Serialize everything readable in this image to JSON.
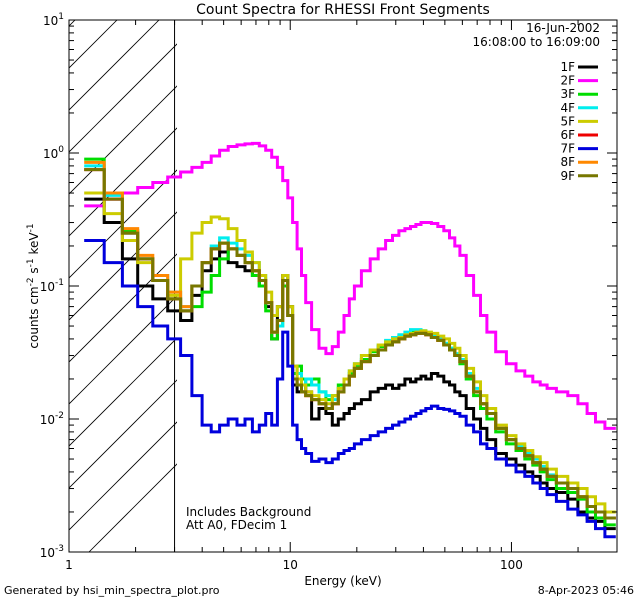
{
  "chart_data": {
    "type": "line",
    "title": "Count Spectra for RHESSI Front Segments",
    "xlabel": "Energy (keV)",
    "ylabel": "counts cm-2 s-1 keV-1",
    "xscale": "log",
    "yscale": "log",
    "xlim": [
      1,
      300
    ],
    "ylim": [
      0.001,
      10
    ],
    "x_ticks": [
      {
        "value": 1,
        "label": "1"
      },
      {
        "value": 10,
        "label": "10"
      },
      {
        "value": 100,
        "label": "100"
      }
    ],
    "y_ticks": [
      {
        "value": 0.001,
        "base": "10",
        "exp": "-3"
      },
      {
        "value": 0.01,
        "base": "10",
        "exp": "-2"
      },
      {
        "value": 0.1,
        "base": "10",
        "exp": "-1"
      },
      {
        "value": 1,
        "base": "10",
        "exp": "0"
      },
      {
        "value": 10,
        "base": "10",
        "exp": "1"
      }
    ],
    "date": "16-Jun-2002",
    "time_range": "16:08:00 to 16:09:00",
    "annotations": [
      "Includes Background",
      "Att A0, FDecim 1"
    ],
    "hatched_region_max_kev": 3,
    "energies": [
      1.3,
      1.6,
      1.9,
      2.2,
      2.6,
      3.0,
      3.4,
      3.8,
      4.2,
      4.6,
      5.0,
      5.5,
      6.0,
      6.5,
      7.0,
      7.5,
      8.0,
      8.5,
      9.0,
      9.5,
      10.0,
      10.5,
      11.0,
      11.5,
      12.0,
      13.0,
      14.0,
      15.0,
      16.0,
      17.0,
      18.0,
      19.0,
      20.0,
      22.0,
      24.0,
      26.0,
      28.0,
      30.0,
      32.0,
      34.0,
      36.0,
      38.0,
      40.0,
      42.0,
      45.0,
      48.0,
      51.0,
      54.0,
      57.0,
      60.0,
      65.0,
      70.0,
      75.0,
      80.0,
      90.0,
      100.0,
      110.0,
      120.0,
      130.0,
      140.0,
      150.0,
      170.0,
      190.0,
      210.0,
      230.0,
      250.0,
      280.0
    ],
    "series": [
      {
        "name": "1F",
        "color": "#000000",
        "values": [
          0.45,
          0.3,
          0.16,
          0.1,
          0.08,
          0.065,
          0.055,
          0.085,
          0.13,
          0.16,
          0.18,
          0.15,
          0.14,
          0.13,
          0.12,
          0.1,
          0.07,
          0.04,
          0.07,
          0.12,
          0.07,
          0.018,
          0.016,
          0.018,
          0.016,
          0.01,
          0.012,
          0.011,
          0.009,
          0.01,
          0.011,
          0.012,
          0.013,
          0.014,
          0.016,
          0.017,
          0.018,
          0.017,
          0.018,
          0.02,
          0.019,
          0.02,
          0.021,
          0.02,
          0.022,
          0.021,
          0.019,
          0.018,
          0.016,
          0.015,
          0.012,
          0.01,
          0.0085,
          0.007,
          0.0055,
          0.005,
          0.0045,
          0.004,
          0.0037,
          0.0033,
          0.003,
          0.0028,
          0.0025,
          0.002,
          0.0018,
          0.0017,
          0.0015
        ]
      },
      {
        "name": "2F",
        "color": "#ff00ff",
        "values": [
          0.4,
          0.45,
          0.5,
          0.55,
          0.6,
          0.66,
          0.72,
          0.78,
          0.85,
          0.95,
          1.05,
          1.12,
          1.15,
          1.17,
          1.18,
          1.13,
          1.05,
          0.93,
          0.78,
          0.62,
          0.46,
          0.3,
          0.19,
          0.12,
          0.075,
          0.047,
          0.034,
          0.031,
          0.035,
          0.045,
          0.06,
          0.08,
          0.1,
          0.13,
          0.16,
          0.19,
          0.22,
          0.24,
          0.26,
          0.27,
          0.28,
          0.29,
          0.3,
          0.3,
          0.295,
          0.28,
          0.26,
          0.23,
          0.2,
          0.17,
          0.12,
          0.085,
          0.06,
          0.045,
          0.032,
          0.026,
          0.023,
          0.021,
          0.019,
          0.018,
          0.017,
          0.016,
          0.015,
          0.013,
          0.011,
          0.0095,
          0.0085
        ]
      },
      {
        "name": "3F",
        "color": "#00dd00",
        "values": [
          0.9,
          0.5,
          0.26,
          0.16,
          0.11,
          0.08,
          0.065,
          0.07,
          0.09,
          0.12,
          0.16,
          0.19,
          0.17,
          0.15,
          0.12,
          0.1,
          0.065,
          0.04,
          0.05,
          0.1,
          0.06,
          0.022,
          0.025,
          0.02,
          0.018,
          0.02,
          0.016,
          0.014,
          0.015,
          0.018,
          0.02,
          0.022,
          0.025,
          0.028,
          0.032,
          0.035,
          0.038,
          0.04,
          0.042,
          0.043,
          0.045,
          0.045,
          0.046,
          0.044,
          0.042,
          0.04,
          0.037,
          0.034,
          0.03,
          0.026,
          0.02,
          0.015,
          0.012,
          0.01,
          0.008,
          0.0065,
          0.0058,
          0.005,
          0.0045,
          0.004,
          0.0035,
          0.003,
          0.0028,
          0.0025,
          0.002,
          0.0018,
          0.0016
        ]
      },
      {
        "name": "4F",
        "color": "#00eeee",
        "values": [
          0.8,
          0.48,
          0.25,
          0.16,
          0.12,
          0.09,
          0.07,
          0.1,
          0.15,
          0.2,
          0.23,
          0.21,
          0.19,
          0.17,
          0.15,
          0.12,
          0.075,
          0.045,
          0.05,
          0.11,
          0.06,
          0.02,
          0.022,
          0.018,
          0.02,
          0.018,
          0.016,
          0.015,
          0.014,
          0.017,
          0.02,
          0.023,
          0.026,
          0.03,
          0.033,
          0.036,
          0.039,
          0.041,
          0.043,
          0.045,
          0.047,
          0.047,
          0.046,
          0.044,
          0.042,
          0.04,
          0.037,
          0.034,
          0.031,
          0.028,
          0.022,
          0.017,
          0.013,
          0.011,
          0.0085,
          0.007,
          0.0062,
          0.0055,
          0.005,
          0.0044,
          0.0038,
          0.0033,
          0.003,
          0.0026,
          0.0022,
          0.002,
          0.0018
        ]
      },
      {
        "name": "5F",
        "color": "#cccc00",
        "values": [
          0.5,
          0.35,
          0.22,
          0.15,
          0.11,
          0.085,
          0.16,
          0.25,
          0.3,
          0.33,
          0.32,
          0.27,
          0.22,
          0.18,
          0.15,
          0.12,
          0.09,
          0.06,
          0.07,
          0.12,
          0.07,
          0.025,
          0.02,
          0.018,
          0.016,
          0.015,
          0.014,
          0.013,
          0.015,
          0.017,
          0.02,
          0.023,
          0.026,
          0.03,
          0.033,
          0.036,
          0.038,
          0.04,
          0.041,
          0.043,
          0.044,
          0.045,
          0.046,
          0.045,
          0.044,
          0.042,
          0.04,
          0.037,
          0.034,
          0.03,
          0.024,
          0.019,
          0.015,
          0.012,
          0.009,
          0.0075,
          0.0065,
          0.0058,
          0.0052,
          0.0047,
          0.0042,
          0.0037,
          0.0033,
          0.003,
          0.0026,
          0.0023,
          0.002
        ]
      },
      {
        "name": "6F",
        "color": "#ee0000",
        "values": [
          0.75,
          0.45,
          0.25,
          0.16,
          0.11,
          0.08,
          0.065,
          0.1,
          0.15,
          0.19,
          0.21,
          0.19,
          0.17,
          0.15,
          0.13,
          0.11,
          0.075,
          0.045,
          0.055,
          0.11,
          0.06,
          0.02,
          0.018,
          0.016,
          0.015,
          0.014,
          0.013,
          0.012,
          0.013,
          0.016,
          0.018,
          0.021,
          0.024,
          0.027,
          0.03,
          0.033,
          0.036,
          0.038,
          0.04,
          0.042,
          0.043,
          0.044,
          0.044,
          0.043,
          0.041,
          0.039,
          0.036,
          0.033,
          0.03,
          0.027,
          0.021,
          0.016,
          0.013,
          0.011,
          0.0085,
          0.007,
          0.006,
          0.0053,
          0.0047,
          0.0042,
          0.0037,
          0.0033,
          0.003,
          0.0026,
          0.0022,
          0.002,
          0.0018
        ]
      },
      {
        "name": "7F",
        "color": "#0000dd",
        "values": [
          0.22,
          0.15,
          0.1,
          0.07,
          0.05,
          0.04,
          0.03,
          0.015,
          0.009,
          0.008,
          0.009,
          0.01,
          0.009,
          0.01,
          0.008,
          0.009,
          0.011,
          0.009,
          0.02,
          0.045,
          0.025,
          0.009,
          0.007,
          0.006,
          0.0055,
          0.0048,
          0.005,
          0.0047,
          0.005,
          0.0055,
          0.0058,
          0.006,
          0.0065,
          0.007,
          0.0075,
          0.008,
          0.0085,
          0.009,
          0.0095,
          0.01,
          0.0105,
          0.011,
          0.0115,
          0.012,
          0.0125,
          0.012,
          0.0118,
          0.0115,
          0.011,
          0.0105,
          0.009,
          0.008,
          0.0065,
          0.006,
          0.005,
          0.0045,
          0.004,
          0.0037,
          0.0033,
          0.003,
          0.0027,
          0.0024,
          0.0021,
          0.0019,
          0.0017,
          0.0015,
          0.0013
        ]
      },
      {
        "name": "8F",
        "color": "#ff8800",
        "values": [
          0.85,
          0.5,
          0.27,
          0.17,
          0.12,
          0.09,
          0.07,
          0.1,
          0.15,
          0.19,
          0.21,
          0.19,
          0.17,
          0.15,
          0.13,
          0.11,
          0.075,
          0.045,
          0.055,
          0.11,
          0.06,
          0.02,
          0.018,
          0.016,
          0.015,
          0.014,
          0.013,
          0.012,
          0.013,
          0.016,
          0.018,
          0.021,
          0.024,
          0.027,
          0.03,
          0.033,
          0.036,
          0.038,
          0.04,
          0.042,
          0.043,
          0.044,
          0.044,
          0.043,
          0.041,
          0.039,
          0.036,
          0.033,
          0.03,
          0.027,
          0.021,
          0.016,
          0.013,
          0.011,
          0.0085,
          0.007,
          0.006,
          0.0053,
          0.0047,
          0.0042,
          0.0037,
          0.0033,
          0.003,
          0.0026,
          0.0022,
          0.002,
          0.0018
        ]
      },
      {
        "name": "9F",
        "color": "#777700",
        "values": [
          0.75,
          0.45,
          0.25,
          0.16,
          0.11,
          0.08,
          0.065,
          0.1,
          0.15,
          0.19,
          0.21,
          0.19,
          0.17,
          0.15,
          0.13,
          0.11,
          0.075,
          0.045,
          0.055,
          0.11,
          0.06,
          0.02,
          0.018,
          0.016,
          0.015,
          0.014,
          0.013,
          0.012,
          0.013,
          0.016,
          0.018,
          0.021,
          0.024,
          0.027,
          0.03,
          0.033,
          0.036,
          0.038,
          0.04,
          0.042,
          0.043,
          0.044,
          0.044,
          0.043,
          0.041,
          0.039,
          0.036,
          0.033,
          0.03,
          0.027,
          0.021,
          0.016,
          0.013,
          0.011,
          0.0085,
          0.007,
          0.006,
          0.0053,
          0.0047,
          0.0042,
          0.0037,
          0.0033,
          0.003,
          0.0026,
          0.0022,
          0.002,
          0.0018
        ]
      }
    ]
  },
  "footer": {
    "generated_by": "Generated by hsi_min_spectra_plot.pro",
    "timestamp": "8-Apr-2023 05:46"
  }
}
